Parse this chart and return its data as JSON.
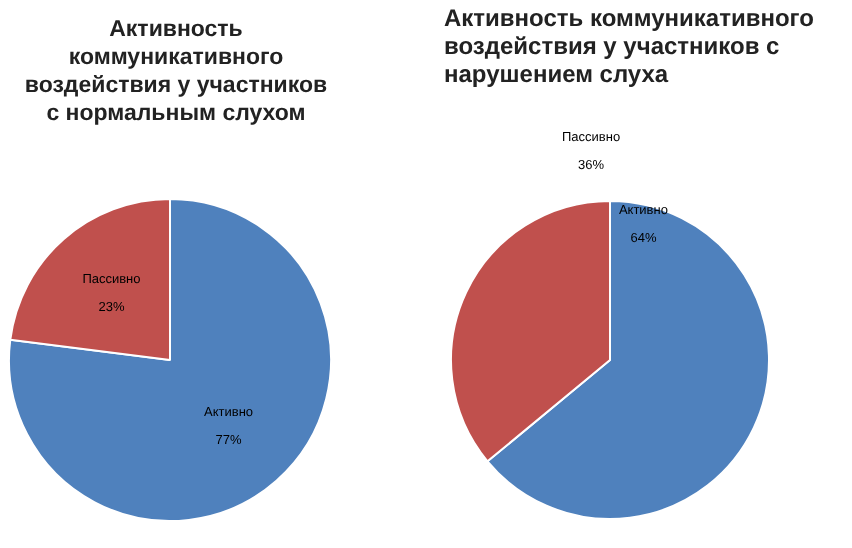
{
  "chart_data": [
    {
      "type": "pie",
      "title": "Активность коммуникативного воздействия у участников с нормальным слухом",
      "categories": [
        "Активно",
        "Пассивно"
      ],
      "values": [
        77,
        23
      ],
      "colors": [
        "#4f81bd",
        "#c0504d"
      ],
      "value_labels": [
        "77%",
        "23%"
      ],
      "legend": false
    },
    {
      "type": "pie",
      "title": "Активность коммуникативного воздействия у участников  с нарушением слуха",
      "categories": [
        "Активно",
        "Пассивно"
      ],
      "values": [
        64,
        36
      ],
      "colors": [
        "#4f81bd",
        "#c0504d"
      ],
      "value_labels": [
        "64%",
        "36%"
      ],
      "legend": false
    }
  ]
}
